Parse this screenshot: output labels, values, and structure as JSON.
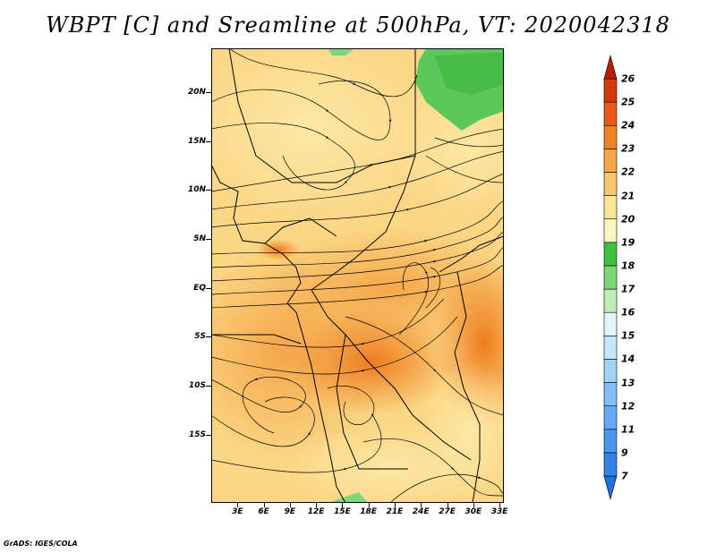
{
  "title": "WBPT [C] and Sreamline at 500hPa, VT: 2020042318",
  "credit": "GrADS: IGES/COLA",
  "map": {
    "lat_range": [
      -22,
      24.5
    ],
    "lon_range": [
      0,
      33.5
    ],
    "lat_labels": [
      {
        "value": 20,
        "text": "20N"
      },
      {
        "value": 15,
        "text": "15N"
      },
      {
        "value": 10,
        "text": "10N"
      },
      {
        "value": 5,
        "text": "5N"
      },
      {
        "value": 0,
        "text": "EQ"
      },
      {
        "value": -5,
        "text": "5S"
      },
      {
        "value": -10,
        "text": "10S"
      },
      {
        "value": -15,
        "text": "15S"
      }
    ],
    "lon_labels": [
      {
        "value": 3,
        "text": "3E"
      },
      {
        "value": 6,
        "text": "6E"
      },
      {
        "value": 9,
        "text": "9E"
      },
      {
        "value": 12,
        "text": "12E"
      },
      {
        "value": 15,
        "text": "15E"
      },
      {
        "value": 18,
        "text": "18E"
      },
      {
        "value": 21,
        "text": "21E"
      },
      {
        "value": 24,
        "text": "24E"
      },
      {
        "value": 27,
        "text": "27E"
      },
      {
        "value": 30,
        "text": "30E"
      },
      {
        "value": 33,
        "text": "33E"
      }
    ]
  },
  "colorbar": {
    "labels": [
      "7",
      "9",
      "11",
      "12",
      "13",
      "14",
      "15",
      "16",
      "17",
      "18",
      "19",
      "20",
      "21",
      "22",
      "23",
      "24",
      "25",
      "26"
    ],
    "colors": [
      "#1e6fe0",
      "#3282e8",
      "#4a96ee",
      "#64aaf2",
      "#82bef5",
      "#a0d2f8",
      "#c2e6fa",
      "#e2f4fc",
      "#bdeeb8",
      "#7fd67a",
      "#3fbf3f",
      "#fff5c0",
      "#fde598",
      "#f8c66e",
      "#f5a748",
      "#f08226",
      "#e65a14",
      "#d43a0a",
      "#b81e05"
    ]
  }
}
